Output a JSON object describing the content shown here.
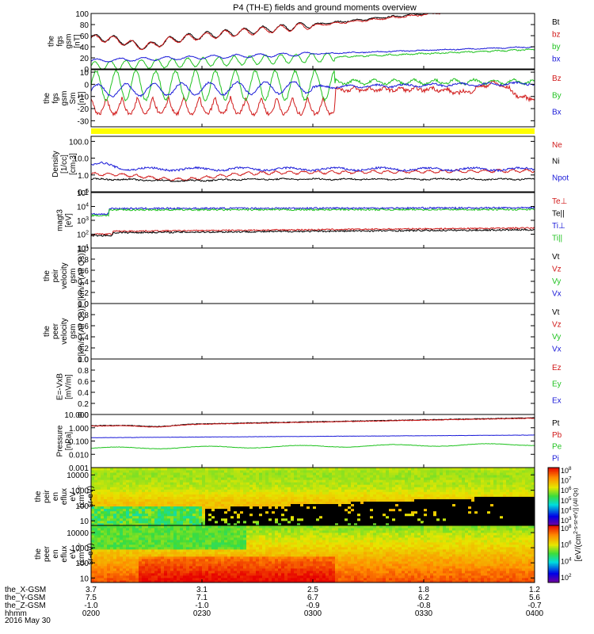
{
  "title": "P4 (TH-E) fields and ground moments overview",
  "date_label": "2016 May 30",
  "colors": {
    "black": "#000000",
    "red": "#d11a1a",
    "green": "#1fc21f",
    "blue": "#1a1ad8",
    "yellow": "#ffff00"
  },
  "chart_data": [
    {
      "type": "line",
      "ylabel": [
        "the",
        "fgs",
        "gsm",
        "[nT]"
      ],
      "ylim": [
        0,
        100
      ],
      "ticks": [
        "0",
        "20",
        "40",
        "60",
        "80",
        "100"
      ],
      "yscale": "linear",
      "series": [
        {
          "name": "Bt",
          "color": "black"
        },
        {
          "name": "bz",
          "color": "red"
        },
        {
          "name": "by",
          "color": "green"
        },
        {
          "name": "bx",
          "color": "blue"
        }
      ]
    },
    {
      "type": "line",
      "ylabel": [
        "the",
        "fgs",
        "gsm",
        "Sm",
        "[nT]"
      ],
      "ylim": [
        -35,
        12
      ],
      "ticks": [
        "-30",
        "-20",
        "-10",
        "0",
        "10"
      ],
      "yscale": "linear",
      "series": [
        {
          "name": "Bz",
          "color": "red"
        },
        {
          "name": "By",
          "color": "green"
        },
        {
          "name": "Bx",
          "color": "blue"
        }
      ]
    },
    {
      "type": "line",
      "ylabel": [
        "Density",
        "[1/cc]",
        "[cm-3]"
      ],
      "ylim": [
        0.1,
        200
      ],
      "ticks": [
        "0.1",
        "1.0",
        "10.0",
        "100.0"
      ],
      "yscale": "log",
      "series": [
        {
          "name": "Ne",
          "color": "red"
        },
        {
          "name": "Ni",
          "color": "black"
        },
        {
          "name": "Npot",
          "color": "blue"
        }
      ]
    },
    {
      "type": "line",
      "ylabel": [
        "magt3",
        "[eV]"
      ],
      "ylim": [
        10,
        100000
      ],
      "ticks": [
        "10^1",
        "10^2",
        "10^3",
        "10^4",
        "10^5"
      ],
      "yscale": "log",
      "series": [
        {
          "name": "Te⊥",
          "color": "red"
        },
        {
          "name": "Te||",
          "color": "black"
        },
        {
          "name": "Ti⊥",
          "color": "blue"
        },
        {
          "name": "Ti||",
          "color": "green"
        }
      ]
    },
    {
      "type": "line",
      "ylabel": [
        "the",
        "peir",
        "velocity",
        "gsm",
        "[km/s (All Qs)]"
      ],
      "ylim": [
        0,
        1
      ],
      "ticks": [
        "0.0",
        "0.2",
        "0.4",
        "0.6",
        "0.8",
        "1.0"
      ],
      "yscale": "linear",
      "series": [
        {
          "name": "Vt",
          "color": "black"
        },
        {
          "name": "Vz",
          "color": "red"
        },
        {
          "name": "Vy",
          "color": "green"
        },
        {
          "name": "Vx",
          "color": "blue"
        }
      ]
    },
    {
      "type": "line",
      "ylabel": [
        "the",
        "peer",
        "velocity",
        "gsm",
        "[km/s (All Qs)]"
      ],
      "ylim": [
        0,
        1
      ],
      "ticks": [
        "0.0",
        "0.2",
        "0.4",
        "0.6",
        "0.8",
        "1.0"
      ],
      "yscale": "linear",
      "series": [
        {
          "name": "Vt",
          "color": "black"
        },
        {
          "name": "Vz",
          "color": "red"
        },
        {
          "name": "Vy",
          "color": "green"
        },
        {
          "name": "Vx",
          "color": "blue"
        }
      ]
    },
    {
      "type": "line",
      "ylabel": [
        "E=-VxB",
        "[mV/m]"
      ],
      "ylim": [
        0,
        1
      ],
      "ticks": [
        "0.0",
        "0.2",
        "0.4",
        "0.6",
        "0.8",
        "1.0"
      ],
      "yscale": "linear",
      "series": [
        {
          "name": "Ez",
          "color": "red"
        },
        {
          "name": "Ey",
          "color": "green"
        },
        {
          "name": "Ex",
          "color": "blue"
        }
      ]
    },
    {
      "type": "line",
      "ylabel": [
        "Pressure",
        "[nPa]"
      ],
      "ylim": [
        0.001,
        10
      ],
      "ticks": [
        "0.001",
        "0.010",
        "0.100",
        "1.000",
        "10.000"
      ],
      "yscale": "log",
      "series": [
        {
          "name": "Pt",
          "color": "black"
        },
        {
          "name": "Pb",
          "color": "red"
        },
        {
          "name": "Pe",
          "color": "green"
        },
        {
          "name": "Pi",
          "color": "blue"
        }
      ]
    },
    {
      "type": "heatmap",
      "ylabel": [
        "the",
        "peir",
        "en",
        "eflux",
        "eV",
        "(cm^2-s-",
        "sr-eV)"
      ],
      "ylim": [
        5,
        30000
      ],
      "ticks": [
        "10",
        "100",
        "1000",
        "10000"
      ],
      "yscale": "log"
    },
    {
      "type": "heatmap",
      "ylabel": [
        "the",
        "peer",
        "en",
        "eflux",
        "eV",
        "(cm^2-s-",
        "sr-eV)"
      ],
      "ylim": [
        5,
        30000
      ],
      "ticks": [
        "10",
        "100",
        "1000",
        "10000"
      ],
      "yscale": "log"
    }
  ],
  "colorbar": {
    "label": "[eV/(cm^2-s-sr-eV)] (All Qs)",
    "upper_ticks": [
      "10^3",
      "10^4",
      "10^5",
      "10^6",
      "10^7",
      "10^8"
    ],
    "lower_ticks": [
      "10^2",
      "10^4",
      "10^6",
      "10^8"
    ]
  },
  "xaxis": {
    "rows": [
      "the_X-GSM",
      "the_Y-GSM",
      "the_Z-GSM",
      "hhmm"
    ],
    "ticks": [
      [
        "3.7",
        "7.5",
        "-1.0",
        "0200"
      ],
      [
        "3.1",
        "7.1",
        "-1.0",
        "0230"
      ],
      [
        "2.5",
        "6.7",
        "-0.9",
        "0300"
      ],
      [
        "1.8",
        "6.2",
        "-0.8",
        "0330"
      ],
      [
        "1.2",
        "5.6",
        "-0.7",
        "0400"
      ]
    ]
  }
}
